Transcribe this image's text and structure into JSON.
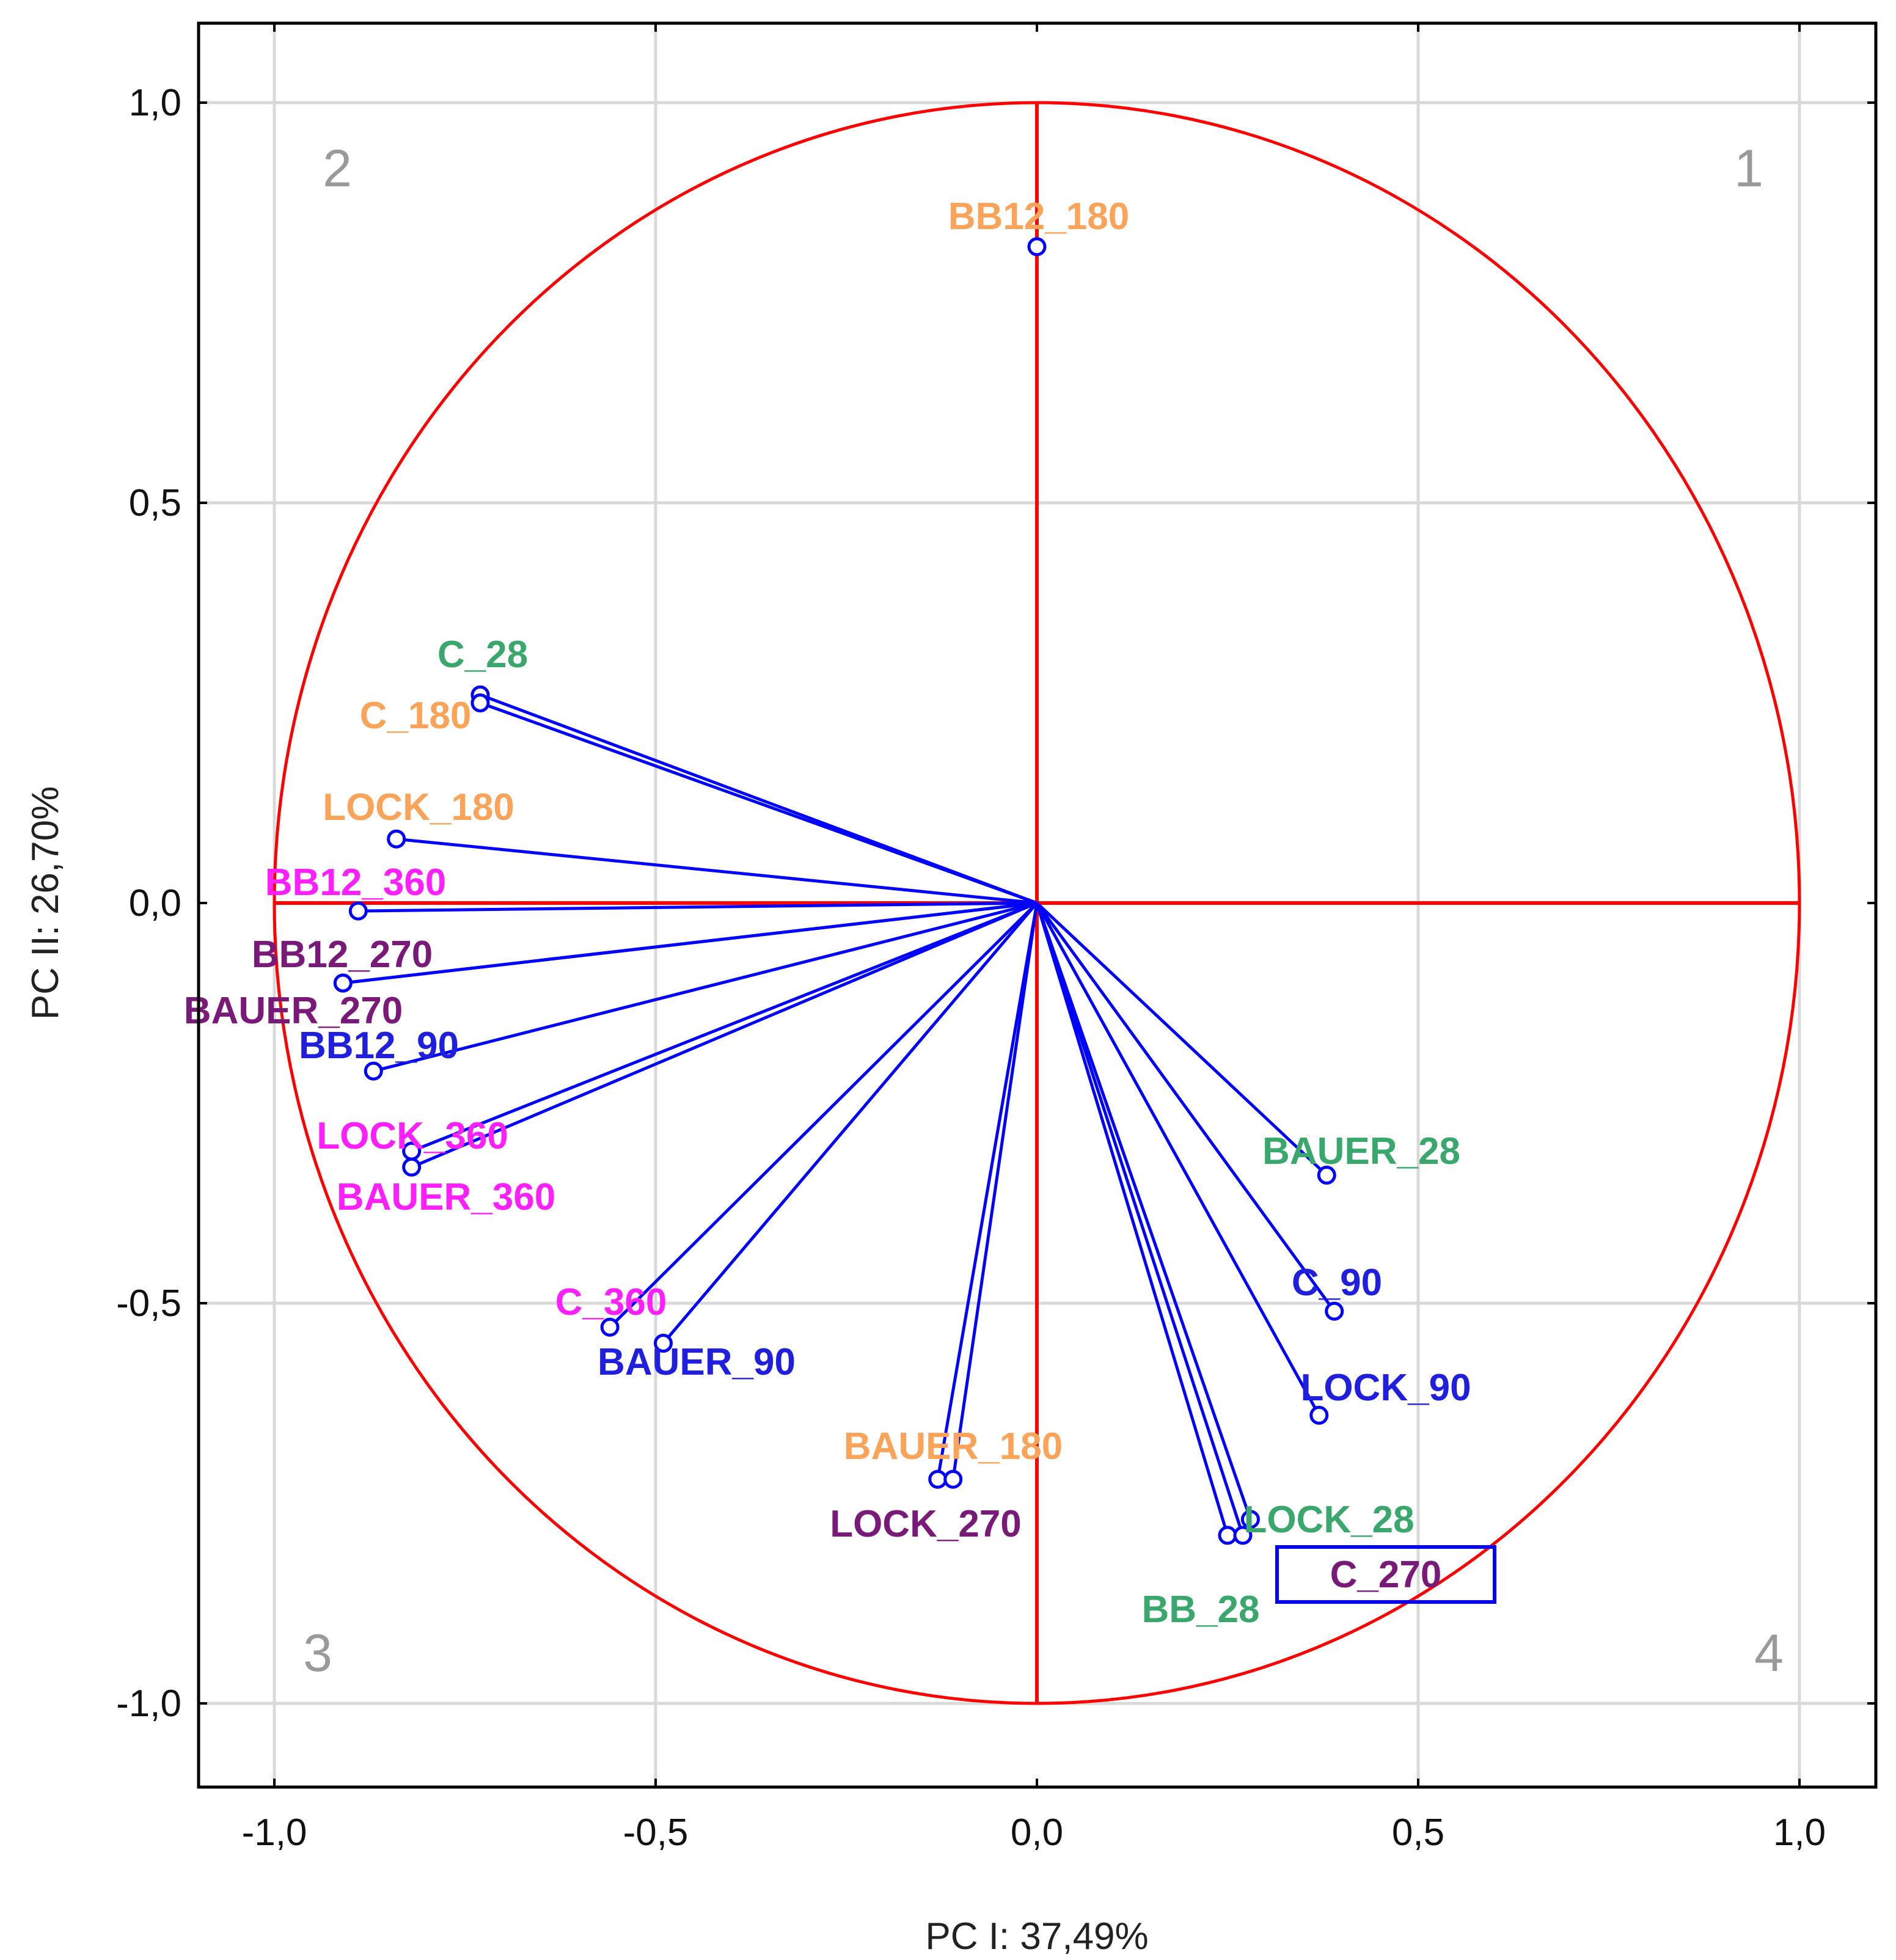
{
  "chart_data": {
    "type": "scatter",
    "subtype": "pca-loading-plot",
    "xlabel": "PC I: 37,49%",
    "ylabel": "PC II: 26,70%",
    "xlim": [
      -1.1,
      1.1
    ],
    "ylim": [
      -1.1,
      1.1
    ],
    "xticks": [
      -1.0,
      -0.5,
      0.0,
      0.5,
      1.0
    ],
    "yticks": [
      -1.0,
      -0.5,
      0.0,
      0.5,
      1.0
    ],
    "xtick_labels": [
      "-1,0",
      "-0,5",
      "0,0",
      "0,5",
      "1,0"
    ],
    "ytick_labels": [
      "-1,0",
      "-0,5",
      "0,0",
      "0,5",
      "1,0"
    ],
    "grid": true,
    "unit_circle": true,
    "quadrant_labels": [
      "1",
      "2",
      "3",
      "4"
    ],
    "highlighted_point": "C_270",
    "colors": {
      "axes_circle": "#ff0000",
      "vectors": "#0000ff",
      "grid": "#d9d9d9",
      "orange": "#fba359",
      "green": "#3aa76d",
      "magenta": "#ff1fff",
      "purple": "#7a1a78",
      "blue": "#1f1fdd",
      "quadrant": "#9a9a9a"
    },
    "points": [
      {
        "name": "BB12_180",
        "x": 0.0,
        "y": 0.82,
        "color": "orange"
      },
      {
        "name": "C_28",
        "x": -0.73,
        "y": 0.26,
        "color": "green"
      },
      {
        "name": "C_180",
        "x": -0.73,
        "y": 0.25,
        "color": "orange"
      },
      {
        "name": "LOCK_180",
        "x": -0.84,
        "y": 0.08,
        "color": "orange"
      },
      {
        "name": "BB12_360",
        "x": -0.89,
        "y": -0.01,
        "color": "magenta"
      },
      {
        "name": "BB12_270",
        "x": -0.91,
        "y": -0.1,
        "color": "purple"
      },
      {
        "name": "BAUER_270",
        "x": -0.91,
        "y": -0.1,
        "color": "purple"
      },
      {
        "name": "BB12_90",
        "x": -0.87,
        "y": -0.21,
        "color": "blue"
      },
      {
        "name": "LOCK_360",
        "x": -0.82,
        "y": -0.31,
        "color": "magenta"
      },
      {
        "name": "BAUER_360",
        "x": -0.82,
        "y": -0.33,
        "color": "magenta"
      },
      {
        "name": "C_360",
        "x": -0.56,
        "y": -0.53,
        "color": "magenta"
      },
      {
        "name": "BAUER_90",
        "x": -0.49,
        "y": -0.55,
        "color": "blue"
      },
      {
        "name": "BAUER_180",
        "x": -0.13,
        "y": -0.72,
        "color": "orange"
      },
      {
        "name": "LOCK_270",
        "x": -0.11,
        "y": -0.72,
        "color": "purple"
      },
      {
        "name": "BAUER_28",
        "x": 0.38,
        "y": -0.34,
        "color": "green"
      },
      {
        "name": "C_90",
        "x": 0.39,
        "y": -0.51,
        "color": "blue"
      },
      {
        "name": "LOCK_90",
        "x": 0.37,
        "y": -0.64,
        "color": "blue"
      },
      {
        "name": "LOCK_28",
        "x": 0.28,
        "y": -0.77,
        "color": "green"
      },
      {
        "name": "BB_28",
        "x": 0.25,
        "y": -0.79,
        "color": "green"
      },
      {
        "name": "C_270",
        "x": 0.27,
        "y": -0.79,
        "color": "purple"
      }
    ]
  }
}
